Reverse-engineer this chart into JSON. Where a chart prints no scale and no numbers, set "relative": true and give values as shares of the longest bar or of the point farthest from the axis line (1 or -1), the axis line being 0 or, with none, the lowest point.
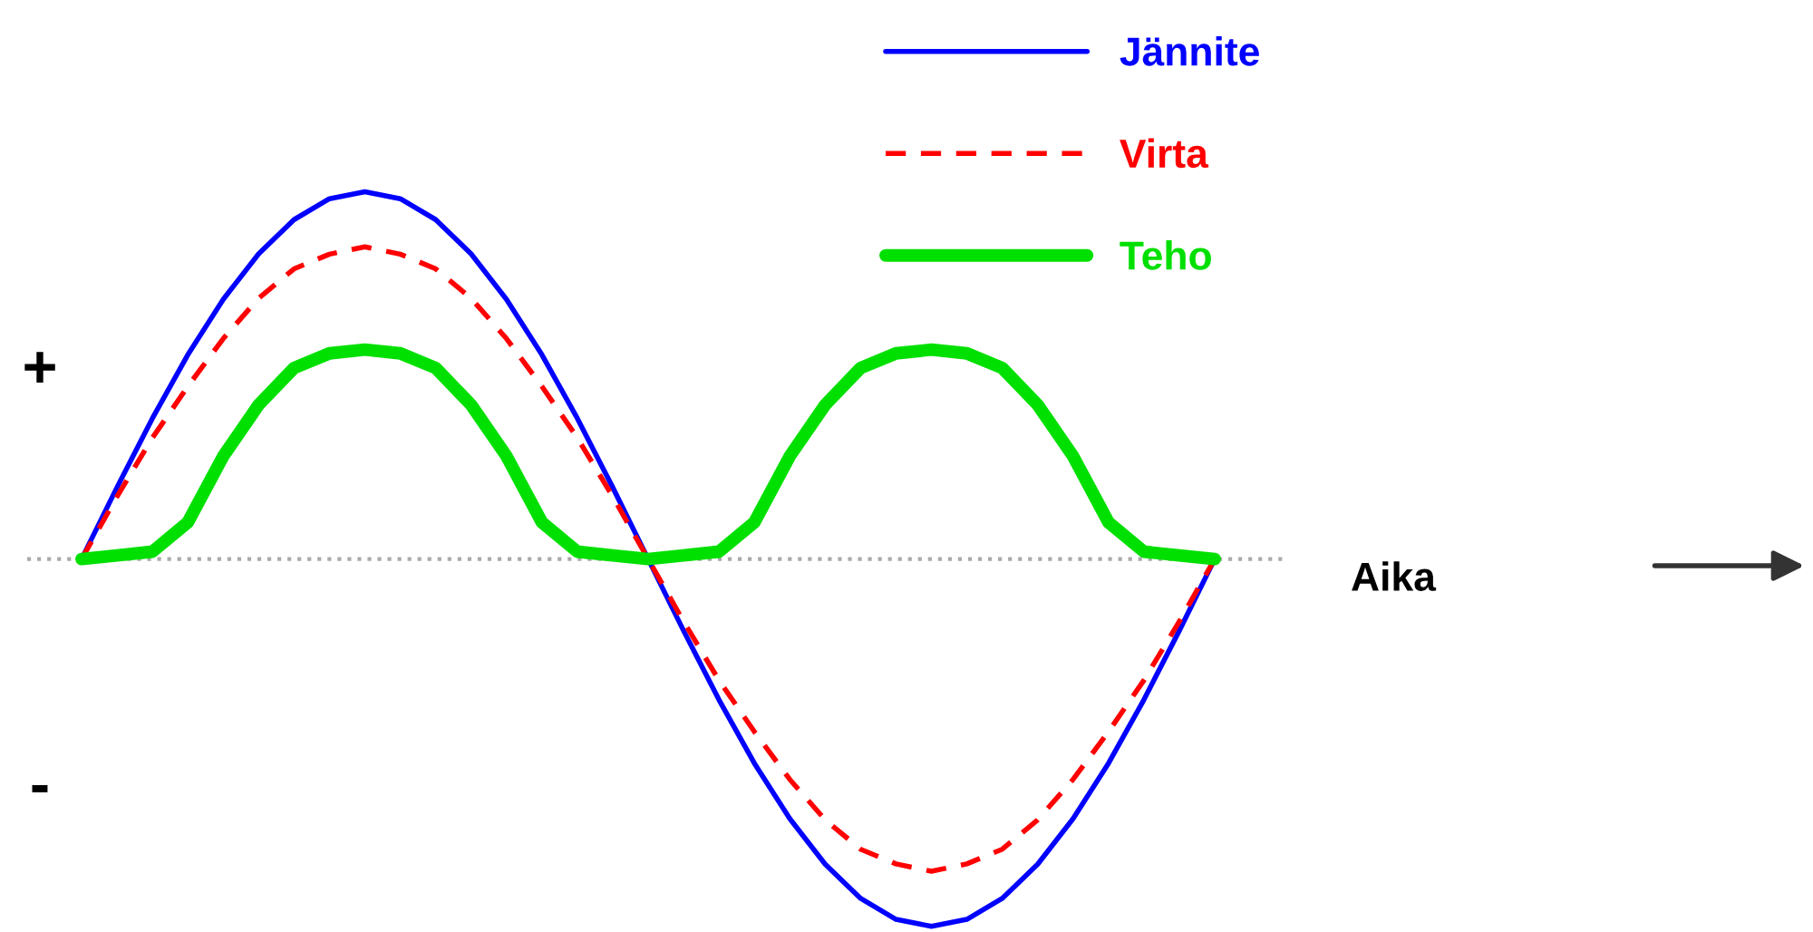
{
  "chart_data": {
    "type": "line",
    "relative": true,
    "xlabel": "Aika",
    "legend": "top",
    "marker": "none",
    "categories": [
      null,
      null,
      null,
      null,
      null,
      null,
      null,
      null,
      null,
      null,
      null,
      null,
      null,
      null,
      null,
      null,
      null,
      null,
      null,
      null,
      null,
      null,
      null,
      null,
      null,
      null,
      null,
      null,
      null,
      null,
      null,
      null,
      null
    ],
    "series": [
      {
        "name": "Jännite",
        "color": "#0000ff",
        "line_style": "solid",
        "values": [
          0,
          0.195,
          0.383,
          0.556,
          0.707,
          0.831,
          0.924,
          0.981,
          1,
          0.981,
          0.924,
          0.831,
          0.707,
          0.556,
          0.383,
          0.195,
          0,
          -0.195,
          -0.383,
          -0.556,
          -0.707,
          -0.831,
          -0.924,
          -0.981,
          -1,
          -0.981,
          -0.924,
          -0.831,
          -0.707,
          -0.556,
          -0.383,
          -0.195,
          0
        ]
      },
      {
        "name": "Virta",
        "color": "#ff0000",
        "line_style": "dashed",
        "values": [
          0,
          0.17,
          0.33,
          0.47,
          0.6,
          0.71,
          0.79,
          0.83,
          0.85,
          0.83,
          0.79,
          0.71,
          0.6,
          0.47,
          0.33,
          0.17,
          0,
          -0.17,
          -0.33,
          -0.47,
          -0.6,
          -0.71,
          -0.79,
          -0.83,
          -0.85,
          -0.83,
          -0.79,
          -0.71,
          -0.6,
          -0.47,
          -0.33,
          -0.17,
          0
        ]
      },
      {
        "name": "Teho",
        "color": "#00e000",
        "line_style": "solid",
        "values": [
          0,
          0.01,
          0.02,
          0.1,
          0.28,
          0.42,
          0.52,
          0.56,
          0.57,
          0.56,
          0.52,
          0.42,
          0.28,
          0.1,
          0.02,
          0.01,
          0,
          0.01,
          0.02,
          0.1,
          0.28,
          0.42,
          0.52,
          0.56,
          0.57,
          0.56,
          0.52,
          0.42,
          0.28,
          0.1,
          0.02,
          0.01,
          0
        ]
      }
    ],
    "ref_lines": [
      {
        "axis": "y",
        "value": 0,
        "color": "#aaaaaa",
        "line_style": "dotted"
      }
    ],
    "annotations": [
      "+",
      "-"
    ]
  }
}
